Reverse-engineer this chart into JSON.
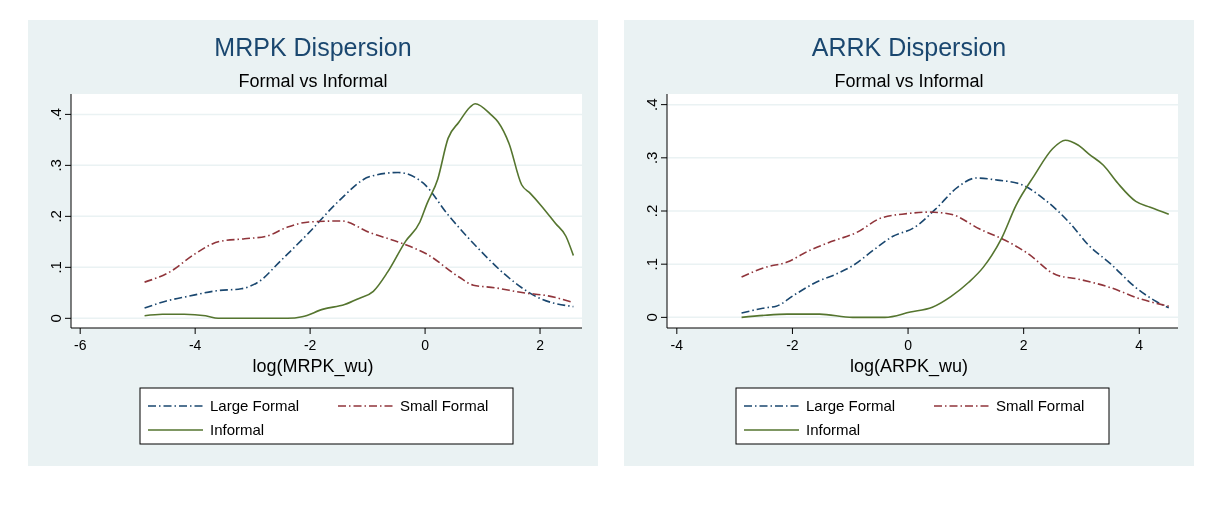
{
  "chart_data": [
    {
      "type": "line",
      "title": "MRPK Dispersion",
      "subtitle": "Formal vs Informal",
      "xlabel": "log(MRPK_wu)",
      "xlim": [
        -6.16,
        2.73
      ],
      "xticks": [
        -6,
        -4,
        -2,
        0,
        2
      ],
      "ylim": [
        -0.019,
        0.44
      ],
      "yticks": [
        0,
        {
          "value": 0.1,
          "label": ".1"
        },
        {
          "value": 0.2,
          "label": ".2"
        },
        {
          "value": 0.3,
          "label": ".3"
        },
        {
          "value": 0.4,
          "label": ".4"
        }
      ],
      "grid": "y",
      "legend": "bottom",
      "series": [
        {
          "name": "Large Formal",
          "color": "#1a476f",
          "line_style": "dashed",
          "x": [
            -4.88,
            -4.5,
            -4.13,
            -3.63,
            -3.2,
            -2.89,
            -2.52,
            -2.02,
            -1.52,
            -0.96,
            -0.47,
            -0.03,
            0.4,
            0.9,
            1.4,
            1.96,
            2.58
          ],
          "values": [
            0.02,
            0.034,
            0.043,
            0.054,
            0.058,
            0.072,
            0.112,
            0.168,
            0.228,
            0.278,
            0.286,
            0.265,
            0.203,
            0.14,
            0.085,
            0.041,
            0.023
          ]
        },
        {
          "name": "Small Formal",
          "color": "#90353b",
          "line_style": "dashed",
          "x": [
            -4.88,
            -4.44,
            -4.01,
            -3.57,
            -3.14,
            -2.76,
            -2.39,
            -2.02,
            -1.46,
            -0.96,
            -0.4,
            0.03,
            0.59,
            0.84,
            1.21,
            1.71,
            2.14,
            2.58
          ],
          "values": [
            0.071,
            0.091,
            0.126,
            0.151,
            0.156,
            0.161,
            0.179,
            0.189,
            0.191,
            0.168,
            0.147,
            0.126,
            0.081,
            0.065,
            0.06,
            0.05,
            0.044,
            0.031
          ]
        },
        {
          "name": "Informal",
          "color": "#55752f",
          "line_style": "solid",
          "x": [
            -4.88,
            -4.57,
            -4.19,
            -3.82,
            -3.6,
            -2.39,
            -2.14,
            -1.77,
            -1.4,
            -1.15,
            -0.9,
            -0.65,
            -0.34,
            -0.09,
            0.03,
            0.22,
            0.4,
            0.59,
            0.78,
            0.87,
            1.15,
            1.27,
            1.46,
            1.68,
            1.83,
            2.02,
            2.27,
            2.45,
            2.58
          ],
          "values": [
            0.005,
            0.008,
            0.008,
            0.005,
            0,
            0,
            0.003,
            0.018,
            0.027,
            0.039,
            0.053,
            0.091,
            0.151,
            0.189,
            0.224,
            0.273,
            0.353,
            0.385,
            0.414,
            0.421,
            0.399,
            0.385,
            0.343,
            0.262,
            0.245,
            0.221,
            0.186,
            0.161,
            0.123
          ]
        }
      ]
    },
    {
      "type": "line",
      "title": "ARRK Dispersion",
      "subtitle": "Formal vs Informal",
      "xlabel": "log(ARPK_wu)",
      "xlim": [
        -4.17,
        4.67
      ],
      "xticks": [
        -4,
        -2,
        0,
        2,
        4
      ],
      "ylim": [
        -0.02,
        0.42
      ],
      "yticks": [
        0,
        {
          "value": 0.1,
          "label": ".1"
        },
        {
          "value": 0.2,
          "label": ".2"
        },
        {
          "value": 0.3,
          "label": ".3"
        },
        {
          "value": 0.4,
          "label": ".4"
        }
      ],
      "grid": "y",
      "legend": "bottom",
      "series": [
        {
          "name": "Large Formal",
          "color": "#1a476f",
          "line_style": "dashed",
          "x": [
            -2.88,
            -2.47,
            -2.28,
            -1.97,
            -1.59,
            -1.21,
            -0.96,
            -0.58,
            -0.27,
            0.11,
            0.48,
            0.86,
            1.18,
            1.55,
            1.93,
            2.37,
            2.81,
            3.13,
            3.5,
            3.94,
            4.26,
            4.51
          ],
          "values": [
            0.008,
            0.018,
            0.021,
            0.042,
            0.066,
            0.083,
            0.097,
            0.128,
            0.152,
            0.169,
            0.204,
            0.245,
            0.262,
            0.258,
            0.251,
            0.221,
            0.176,
            0.135,
            0.101,
            0.056,
            0.032,
            0.018
          ]
        },
        {
          "name": "Small Formal",
          "color": "#90353b",
          "line_style": "dashed",
          "x": [
            -2.88,
            -2.47,
            -2.09,
            -1.72,
            -1.34,
            -0.9,
            -0.46,
            -0.02,
            0.36,
            0.74,
            1.24,
            1.68,
            2.06,
            2.56,
            2.94,
            3.5,
            4.01,
            4.51
          ],
          "values": [
            0.076,
            0.094,
            0.104,
            0.125,
            0.142,
            0.159,
            0.187,
            0.195,
            0.198,
            0.194,
            0.166,
            0.145,
            0.121,
            0.08,
            0.072,
            0.056,
            0.035,
            0.021
          ]
        },
        {
          "name": "Informal",
          "color": "#55752f",
          "line_style": "solid",
          "x": [
            -2.88,
            -2.47,
            -2.09,
            -1.53,
            -0.96,
            -0.4,
            0.04,
            0.42,
            0.74,
            1.05,
            1.3,
            1.62,
            1.87,
            2.18,
            2.5,
            2.72,
            2.94,
            3.13,
            3.38,
            3.63,
            3.94,
            4.19,
            4.51
          ],
          "values": [
            0,
            0.004,
            0.006,
            0.006,
            0,
            0,
            0.01,
            0.019,
            0.039,
            0.066,
            0.094,
            0.149,
            0.211,
            0.266,
            0.317,
            0.333,
            0.324,
            0.307,
            0.286,
            0.252,
            0.218,
            0.207,
            0.194
          ]
        }
      ]
    }
  ]
}
